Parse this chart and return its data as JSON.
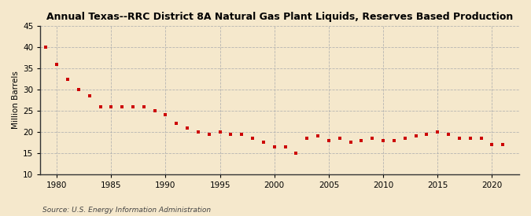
{
  "title": "Annual Texas--RRC District 8A Natural Gas Plant Liquids, Reserves Based Production",
  "ylabel": "Million Barrels",
  "source": "Source: U.S. Energy Information Administration",
  "background_color": "#f5e8cc",
  "marker_color": "#cc0000",
  "grid_color": "#b0b0b0",
  "xlim": [
    1978.5,
    2022.5
  ],
  "ylim": [
    10,
    45
  ],
  "yticks": [
    10,
    15,
    20,
    25,
    30,
    35,
    40,
    45
  ],
  "xticks": [
    1980,
    1985,
    1990,
    1995,
    2000,
    2005,
    2010,
    2015,
    2020
  ],
  "years": [
    1979,
    1980,
    1981,
    1982,
    1983,
    1984,
    1985,
    1986,
    1987,
    1988,
    1989,
    1990,
    1991,
    1992,
    1993,
    1994,
    1995,
    1996,
    1997,
    1998,
    1999,
    2000,
    2001,
    2002,
    2003,
    2004,
    2005,
    2006,
    2007,
    2008,
    2009,
    2010,
    2011,
    2012,
    2013,
    2014,
    2015,
    2016,
    2017,
    2018,
    2019,
    2020,
    2021
  ],
  "values": [
    40.0,
    36.0,
    32.5,
    30.0,
    28.5,
    26.0,
    26.0,
    26.0,
    26.0,
    26.0,
    25.0,
    24.0,
    22.0,
    21.0,
    20.0,
    19.5,
    20.0,
    19.5,
    19.5,
    18.5,
    17.5,
    16.5,
    16.5,
    15.0,
    18.5,
    19.0,
    18.0,
    18.5,
    17.5,
    18.0,
    18.5,
    18.0,
    18.0,
    18.5,
    19.0,
    19.5,
    20.0,
    19.5,
    18.5,
    18.5,
    18.5,
    17.0,
    17.0
  ]
}
